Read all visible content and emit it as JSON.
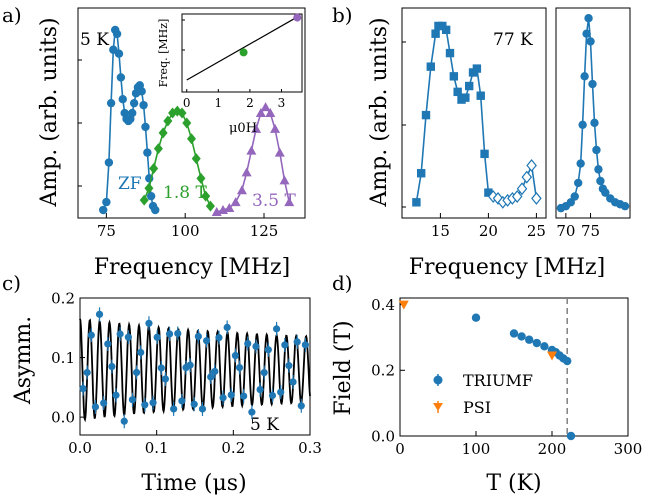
{
  "colors": {
    "blue": "#1f77b4",
    "green": "#2ca02c",
    "purple": "#9467bd",
    "orange": "#ff7f0e",
    "dashed": "#808080",
    "fit": "#000000"
  },
  "chart_data": [
    {
      "id": "a",
      "panel_label": "a)",
      "type": "line",
      "xlabel": "Frequency [MHz]",
      "ylabel": "Amp. (arb. units)",
      "xlim": [
        66,
        138
      ],
      "xticks": [
        75,
        100,
        125
      ],
      "annotations": {
        "temperature": "5 K",
        "zf": "ZF",
        "f18": "1.8 T",
        "f35": "3.5 T"
      },
      "series": [
        {
          "name": "ZF",
          "color": "#1f77b4",
          "marker": "circle",
          "x": [
            74,
            75,
            75.8,
            76.5,
            77.2,
            77.8,
            78.4,
            79,
            79.6,
            80.2,
            80.8,
            81.4,
            82,
            82.6,
            83.2,
            83.8,
            84.4,
            85,
            85.6,
            86.2,
            86.8,
            87.4,
            88,
            88.6,
            89.2,
            89.8,
            90.5
          ],
          "y": [
            0.01,
            0.05,
            0.25,
            0.55,
            0.82,
            0.92,
            0.9,
            0.8,
            0.68,
            0.57,
            0.5,
            0.47,
            0.46,
            0.47,
            0.5,
            0.55,
            0.6,
            0.63,
            0.64,
            0.61,
            0.54,
            0.43,
            0.3,
            0.17,
            0.08,
            0.03,
            0.01
          ]
        },
        {
          "name": "1.8 T",
          "color": "#2ca02c",
          "marker": "diamond",
          "x": [
            87,
            88.5,
            90,
            91.5,
            93,
            94.5,
            96,
            97.5,
            99,
            100.5,
            102,
            103.5,
            105,
            106.5,
            108
          ],
          "y": [
            0.06,
            0.12,
            0.22,
            0.32,
            0.4,
            0.46,
            0.5,
            0.51,
            0.5,
            0.45,
            0.37,
            0.27,
            0.17,
            0.08,
            0.03
          ]
        },
        {
          "name": "3.5 T",
          "color": "#9467bd",
          "marker": "triangle",
          "x": [
            110,
            112,
            114,
            116,
            118,
            119.5,
            121,
            122.5,
            124,
            125.5,
            127,
            128.5,
            130,
            131.5,
            133
          ],
          "y": [
            0.0,
            0.01,
            0.02,
            0.05,
            0.11,
            0.2,
            0.31,
            0.42,
            0.5,
            0.53,
            0.5,
            0.42,
            0.3,
            0.16,
            0.05
          ]
        }
      ]
    },
    {
      "id": "a_inset",
      "type": "scatter",
      "xlabel": "μ0H",
      "ylabel": "Freq. [MHz]",
      "xlim": [
        -0.15,
        3.65
      ],
      "ylim": [
        65,
        130
      ],
      "xticks": [
        0,
        1,
        2,
        3
      ],
      "yticks": [
        100,
        125
      ],
      "line": {
        "x": [
          0,
          3.6
        ],
        "y": [
          75,
          129
        ]
      },
      "points": [
        {
          "x": 1.8,
          "y": 98,
          "color": "#2ca02c"
        },
        {
          "x": 3.5,
          "y": 127,
          "color": "#9467bd"
        }
      ]
    },
    {
      "id": "b_left",
      "panel_label": "b)",
      "type": "line",
      "xlabel": "Frequency [MHz]",
      "ylabel": "Amp. (arb. units)",
      "xlim": [
        11,
        26
      ],
      "xticks": [
        15,
        20,
        25
      ],
      "annotations": {
        "temperature": "77 K"
      },
      "series": [
        {
          "name": "",
          "color": "#1f77b4",
          "marker": "square",
          "x": [
            12.5,
            13,
            13.5,
            14,
            14.5,
            14.8,
            15.2,
            15.6,
            16,
            16.4,
            16.8,
            17.2,
            17.6,
            18,
            18.4,
            18.8,
            19.2,
            19.6,
            20
          ],
          "y": [
            0.05,
            0.2,
            0.5,
            0.75,
            0.92,
            0.96,
            0.96,
            0.94,
            0.82,
            0.7,
            0.62,
            0.58,
            0.59,
            0.65,
            0.72,
            0.74,
            0.6,
            0.3,
            0.1
          ]
        },
        {
          "name": "",
          "color": "#1f77b4",
          "marker": "open-diamond",
          "x": [
            20.5,
            21,
            21.5,
            22,
            22.5,
            23,
            23.5,
            24,
            24.5,
            25
          ],
          "y": [
            0.08,
            0.07,
            0.05,
            0.06,
            0.07,
            0.08,
            0.12,
            0.18,
            0.24,
            0.07
          ]
        }
      ]
    },
    {
      "id": "b_right",
      "type": "line",
      "xlim": [
        68,
        83
      ],
      "xticks": [
        70,
        75
      ],
      "series": [
        {
          "name": "",
          "color": "#1f77b4",
          "marker": "circle",
          "x": [
            69,
            70,
            71,
            71.8,
            72.5,
            73,
            73.4,
            73.8,
            74.2,
            74.6,
            75,
            75.4,
            75.8,
            76.2,
            76.6,
            77,
            77.5,
            78,
            79,
            80,
            81,
            82
          ],
          "y": [
            0.02,
            0.03,
            0.05,
            0.08,
            0.15,
            0.25,
            0.45,
            0.7,
            0.92,
            1.0,
            0.88,
            0.66,
            0.46,
            0.32,
            0.22,
            0.16,
            0.12,
            0.1,
            0.07,
            0.05,
            0.04,
            0.03
          ]
        }
      ]
    },
    {
      "id": "c",
      "panel_label": "c)",
      "type": "scatter",
      "xlabel": "Time (μs)",
      "ylabel": "Asymm.",
      "xlim": [
        0,
        0.3
      ],
      "ylim": [
        -0.03,
        0.2
      ],
      "xticks": [
        0.0,
        0.1,
        0.2,
        0.3
      ],
      "yticks": [
        0.0,
        0.1,
        0.2
      ],
      "annotations": {
        "temperature": "5 K"
      },
      "oscillation": {
        "offset": 0.08,
        "amp0": 0.085,
        "tau": 0.25,
        "floor": 0.5,
        "freq_mhz": 78,
        "points": 55
      }
    },
    {
      "id": "d",
      "panel_label": "d)",
      "type": "scatter",
      "xlabel": "T (K)",
      "ylabel": "Field (T)",
      "xlim": [
        0,
        300
      ],
      "ylim": [
        0,
        0.42
      ],
      "xticks": [
        0,
        100,
        200,
        300
      ],
      "yticks": [
        0.0,
        0.2,
        0.4
      ],
      "vline_x": 220,
      "series": [
        {
          "name": "TRIUMF",
          "color": "#1f77b4",
          "marker": "circle",
          "x": [
            100,
            150,
            160,
            170,
            180,
            190,
            200,
            205,
            210,
            215,
            220,
            225
          ],
          "y": [
            0.36,
            0.312,
            0.303,
            0.293,
            0.283,
            0.273,
            0.262,
            0.255,
            0.245,
            0.236,
            0.228,
            0.0
          ]
        },
        {
          "name": "PSI",
          "color": "#ff7f0e",
          "marker": "triangle-down",
          "x": [
            5,
            200
          ],
          "y": [
            0.4,
            0.245
          ]
        }
      ]
    }
  ]
}
